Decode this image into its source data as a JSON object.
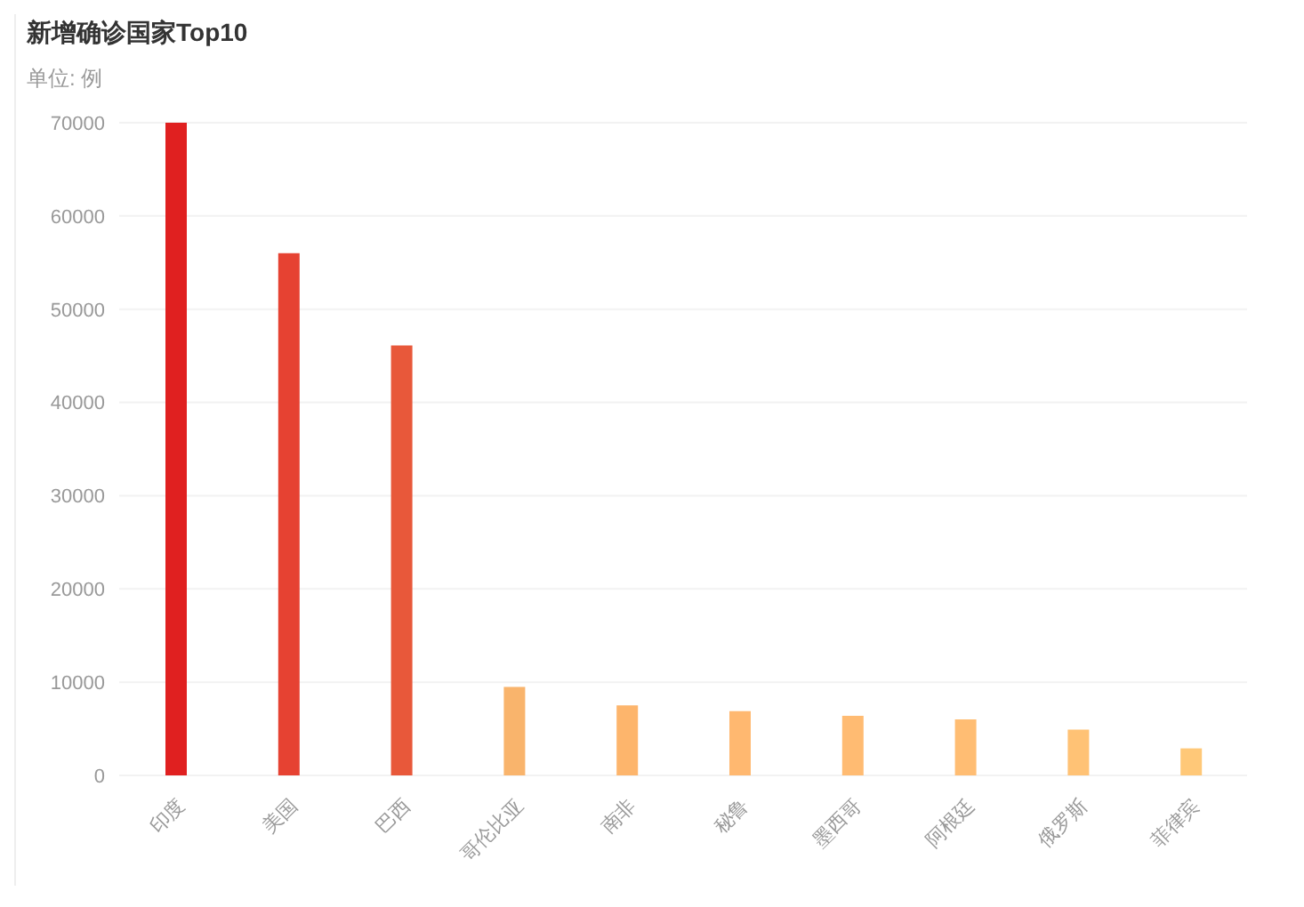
{
  "chart_data": {
    "type": "bar",
    "title": "新增确诊国家Top10",
    "subtitle": "单位: 例",
    "categories": [
      "印度",
      "美国",
      "巴西",
      "哥伦比亚",
      "南非",
      "秘鲁",
      "墨西哥",
      "阿根廷",
      "俄罗斯",
      "菲律宾"
    ],
    "values": [
      70000,
      56000,
      46100,
      9500,
      7500,
      6900,
      6400,
      6000,
      4900,
      2900
    ],
    "colors": [
      "#e02020",
      "#e64232",
      "#e8583a",
      "#f9b46c",
      "#fdb56c",
      "#ffb870",
      "#ffbb72",
      "#ffbd73",
      "#ffc275",
      "#ffc878"
    ],
    "ylim": [
      0,
      70000
    ],
    "yticks": [
      0,
      10000,
      20000,
      30000,
      40000,
      50000,
      60000,
      70000
    ],
    "grid": "y"
  }
}
